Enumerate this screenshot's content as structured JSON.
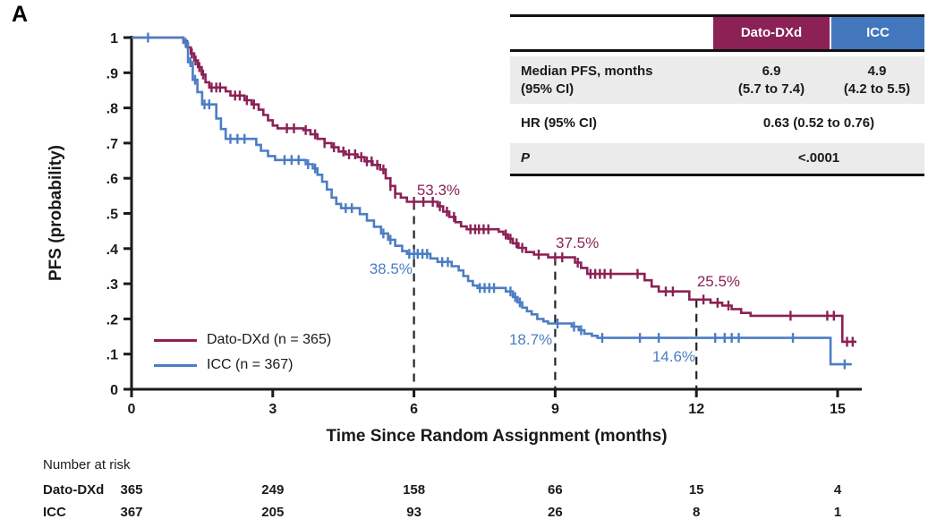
{
  "panel_label": "A",
  "colors": {
    "dato": "#8b2155",
    "dato_header": "#8b2155",
    "icc": "#4c7dc4",
    "icc_header": "#4377bd",
    "row_shade": "#ebebeb",
    "axis": "#1a1a1a",
    "dashed_line": "#222222"
  },
  "stats_table": {
    "header": {
      "dato": "Dato-DXd",
      "icc": "ICC"
    },
    "row_median": {
      "label_line1": "Median PFS, months",
      "label_line2": "(95% CI)",
      "dato_line1": "6.9",
      "dato_line2": "(5.7 to 7.4)",
      "icc_line1": "4.9",
      "icc_line2": "(4.2 to 5.5)"
    },
    "row_hr": {
      "label": "HR (95% CI)",
      "value": "0.63 (0.52 to 0.76)"
    },
    "row_p": {
      "label": "P",
      "value": "<.0001"
    }
  },
  "chart_data": {
    "type": "line",
    "subtype": "kaplan-meier-step",
    "title": "",
    "xlabel": "Time Since Random Assignment (months)",
    "ylabel": "PFS (probability)",
    "xlim": [
      0,
      15.6
    ],
    "ylim": [
      0,
      1
    ],
    "x_ticks": [
      "0",
      "3",
      "6",
      "9",
      "12",
      "15"
    ],
    "x_tick_values": [
      0,
      3,
      6,
      9,
      12,
      15
    ],
    "y_ticks": [
      "0",
      ".1",
      ".2",
      ".3",
      ".4",
      ".5",
      ".6",
      ".7",
      ".8",
      ".9",
      "1"
    ],
    "y_tick_values": [
      0,
      0.1,
      0.2,
      0.3,
      0.4,
      0.5,
      0.6,
      0.7,
      0.8,
      0.9,
      1
    ],
    "grid": false,
    "legend_position": "inside-lower-left",
    "series": [
      {
        "name": "Dato-DXd (n = 365)",
        "color_key": "dato",
        "end_x": 15.4,
        "steps": [
          [
            0,
            1.0
          ],
          [
            1.1,
            0.99
          ],
          [
            1.18,
            0.972
          ],
          [
            1.26,
            0.955
          ],
          [
            1.33,
            0.935
          ],
          [
            1.41,
            0.916
          ],
          [
            1.49,
            0.895
          ],
          [
            1.57,
            0.873
          ],
          [
            1.65,
            0.858
          ],
          [
            2.0,
            0.847
          ],
          [
            2.1,
            0.835
          ],
          [
            2.4,
            0.822
          ],
          [
            2.55,
            0.81
          ],
          [
            2.7,
            0.795
          ],
          [
            2.8,
            0.78
          ],
          [
            2.9,
            0.765
          ],
          [
            3.0,
            0.75
          ],
          [
            3.1,
            0.742
          ],
          [
            3.65,
            0.737
          ],
          [
            3.8,
            0.725
          ],
          [
            3.95,
            0.712
          ],
          [
            4.1,
            0.7
          ],
          [
            4.25,
            0.688
          ],
          [
            4.4,
            0.676
          ],
          [
            4.55,
            0.668
          ],
          [
            4.8,
            0.66
          ],
          [
            4.95,
            0.648
          ],
          [
            5.12,
            0.638
          ],
          [
            5.28,
            0.625
          ],
          [
            5.4,
            0.6
          ],
          [
            5.5,
            0.578
          ],
          [
            5.6,
            0.556
          ],
          [
            5.72,
            0.545
          ],
          [
            5.85,
            0.533
          ],
          [
            6.5,
            0.52
          ],
          [
            6.62,
            0.505
          ],
          [
            6.75,
            0.49
          ],
          [
            6.88,
            0.475
          ],
          [
            7.0,
            0.463
          ],
          [
            7.12,
            0.455
          ],
          [
            7.8,
            0.448
          ],
          [
            7.9,
            0.44
          ],
          [
            8.0,
            0.428
          ],
          [
            8.1,
            0.415
          ],
          [
            8.22,
            0.402
          ],
          [
            8.38,
            0.39
          ],
          [
            8.55,
            0.383
          ],
          [
            8.85,
            0.375
          ],
          [
            9.42,
            0.36
          ],
          [
            9.55,
            0.345
          ],
          [
            9.68,
            0.328
          ],
          [
            10.9,
            0.31
          ],
          [
            11.05,
            0.292
          ],
          [
            11.2,
            0.278
          ],
          [
            11.85,
            0.255
          ],
          [
            12.3,
            0.246
          ],
          [
            12.55,
            0.238
          ],
          [
            12.75,
            0.228
          ],
          [
            12.95,
            0.217
          ],
          [
            13.15,
            0.209
          ],
          [
            15.1,
            0.135
          ]
        ],
        "censor_x": [
          1.28,
          1.36,
          1.44,
          1.52,
          1.7,
          1.8,
          1.88,
          2.2,
          2.3,
          2.45,
          2.6,
          3.3,
          3.45,
          3.7,
          3.9,
          4.1,
          4.3,
          4.5,
          4.62,
          4.75,
          4.88,
          5.0,
          5.1,
          5.22,
          5.35,
          5.5,
          5.6,
          6.0,
          6.2,
          6.4,
          6.55,
          6.7,
          6.85,
          7.2,
          7.3,
          7.38,
          7.48,
          7.58,
          7.95,
          8.05,
          8.18,
          8.3,
          8.65,
          9.0,
          9.15,
          9.48,
          9.75,
          9.85,
          9.95,
          10.05,
          10.18,
          10.75,
          11.35,
          11.5,
          12.15,
          12.45,
          12.68,
          14.0,
          14.78,
          14.92,
          15.2,
          15.32
        ]
      },
      {
        "name": "ICC (n = 367)",
        "color_key": "icc",
        "end_x": 15.3,
        "steps": [
          [
            0,
            1.0
          ],
          [
            1.1,
            0.985
          ],
          [
            1.2,
            0.93
          ],
          [
            1.3,
            0.88
          ],
          [
            1.4,
            0.845
          ],
          [
            1.5,
            0.81
          ],
          [
            1.8,
            0.77
          ],
          [
            1.9,
            0.74
          ],
          [
            2.0,
            0.712
          ],
          [
            2.65,
            0.695
          ],
          [
            2.75,
            0.678
          ],
          [
            2.9,
            0.663
          ],
          [
            3.05,
            0.652
          ],
          [
            3.7,
            0.64
          ],
          [
            3.85,
            0.628
          ],
          [
            3.95,
            0.61
          ],
          [
            4.05,
            0.59
          ],
          [
            4.15,
            0.568
          ],
          [
            4.25,
            0.545
          ],
          [
            4.35,
            0.527
          ],
          [
            4.45,
            0.515
          ],
          [
            4.85,
            0.498
          ],
          [
            5.0,
            0.48
          ],
          [
            5.15,
            0.462
          ],
          [
            5.3,
            0.443
          ],
          [
            5.45,
            0.425
          ],
          [
            5.6,
            0.408
          ],
          [
            5.75,
            0.393
          ],
          [
            5.85,
            0.385
          ],
          [
            6.35,
            0.372
          ],
          [
            6.5,
            0.362
          ],
          [
            6.8,
            0.35
          ],
          [
            6.95,
            0.338
          ],
          [
            7.05,
            0.322
          ],
          [
            7.15,
            0.308
          ],
          [
            7.25,
            0.295
          ],
          [
            7.35,
            0.288
          ],
          [
            7.95,
            0.278
          ],
          [
            8.1,
            0.262
          ],
          [
            8.2,
            0.247
          ],
          [
            8.3,
            0.232
          ],
          [
            8.4,
            0.222
          ],
          [
            8.5,
            0.213
          ],
          [
            8.62,
            0.2
          ],
          [
            8.75,
            0.193
          ],
          [
            8.85,
            0.187
          ],
          [
            9.35,
            0.178
          ],
          [
            9.5,
            0.168
          ],
          [
            9.62,
            0.158
          ],
          [
            9.78,
            0.152
          ],
          [
            9.9,
            0.146
          ],
          [
            14.85,
            0.071
          ]
        ],
        "censor_x": [
          0.35,
          1.15,
          1.25,
          1.35,
          1.55,
          1.65,
          2.1,
          2.25,
          2.4,
          3.25,
          3.4,
          3.55,
          3.75,
          3.9,
          4.55,
          4.68,
          5.35,
          5.5,
          5.9,
          6.0,
          6.08,
          6.18,
          6.28,
          6.6,
          6.72,
          7.4,
          7.5,
          7.6,
          7.7,
          8.05,
          8.15,
          8.25,
          9.05,
          9.4,
          9.55,
          10.0,
          10.8,
          11.2,
          12.4,
          12.6,
          12.75,
          12.9,
          14.05,
          15.15
        ]
      }
    ],
    "annotations": [
      {
        "text": "53.3%",
        "x": 6.52,
        "y": 0.567,
        "series": 0
      },
      {
        "text": "37.5%",
        "x": 9.47,
        "y": 0.417,
        "series": 0
      },
      {
        "text": "25.5%",
        "x": 12.47,
        "y": 0.308,
        "series": 0
      },
      {
        "text": "38.5%",
        "x": 5.51,
        "y": 0.344,
        "series": 1
      },
      {
        "text": "18.7%",
        "x": 8.48,
        "y": 0.142,
        "series": 1
      },
      {
        "text": "14.6%",
        "x": 11.52,
        "y": 0.094,
        "series": 1
      }
    ],
    "dashed_lines": [
      {
        "x": 6,
        "y_top": 0.533
      },
      {
        "x": 9,
        "y_top": 0.375
      },
      {
        "x": 12,
        "y_top": 0.255
      }
    ]
  },
  "at_risk": {
    "title": "Number at risk",
    "times": [
      0,
      3,
      6,
      9,
      12,
      15
    ],
    "rows": [
      {
        "label": "Dato-DXd",
        "values": [
          "365",
          "249",
          "158",
          "66",
          "15",
          "4"
        ]
      },
      {
        "label": "ICC",
        "values": [
          "367",
          "205",
          "93",
          "26",
          "8",
          "1"
        ]
      }
    ]
  }
}
